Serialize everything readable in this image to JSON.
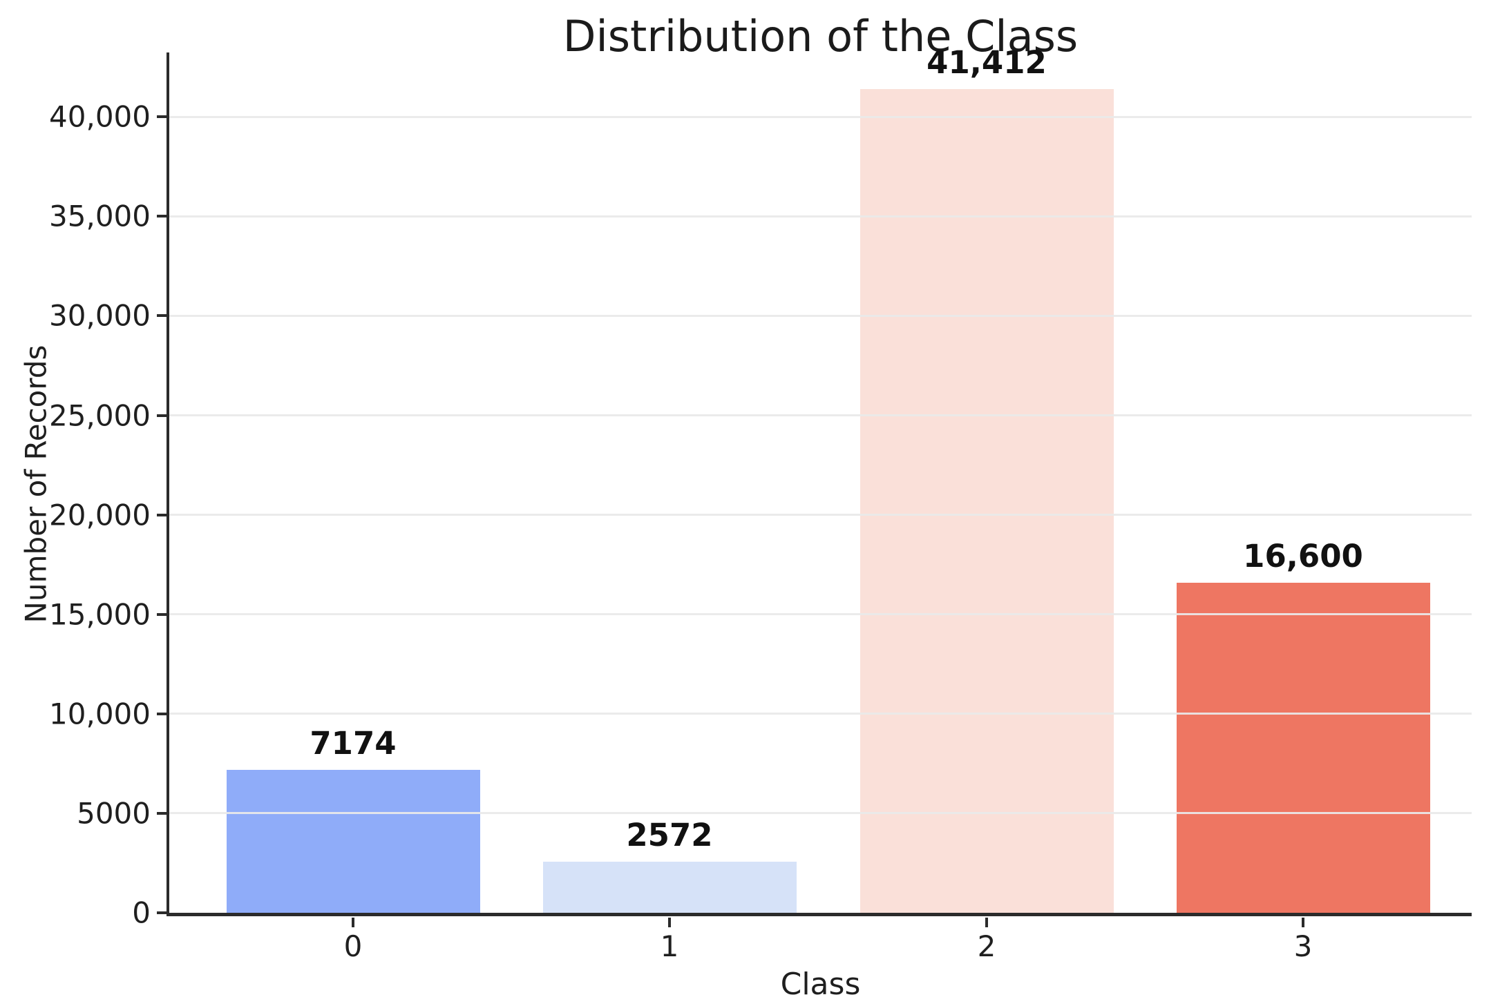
{
  "chart_data": {
    "type": "bar",
    "title": "Distribution of the Class",
    "xlabel": "Class",
    "ylabel": "Number of Records",
    "categories": [
      "0",
      "1",
      "2",
      "3"
    ],
    "values": [
      7174,
      2572,
      41412,
      16600
    ],
    "bar_labels": [
      "7174",
      "2572",
      "41,412",
      "16,600"
    ],
    "bar_colors": [
      "#8FACF9",
      "#D6E2F8",
      "#FAE0D9",
      "#EE7662"
    ],
    "yticks": [
      {
        "value": 0,
        "label": "0"
      },
      {
        "value": 5000,
        "label": "5000"
      },
      {
        "value": 10000,
        "label": "10,000"
      },
      {
        "value": 15000,
        "label": "15,000"
      },
      {
        "value": 20000,
        "label": "20,000"
      },
      {
        "value": 25000,
        "label": "25,000"
      },
      {
        "value": 30000,
        "label": "30,000"
      },
      {
        "value": 35000,
        "label": "35,000"
      },
      {
        "value": 40000,
        "label": "40,000"
      }
    ],
    "ylim": [
      0,
      43100
    ],
    "grid": "horizontal-only",
    "legend": "none"
  },
  "colors": {
    "background": "#ffffff",
    "axis": "#2b2b2b",
    "text": "#1a1a1a",
    "gridline": "#ececec"
  }
}
